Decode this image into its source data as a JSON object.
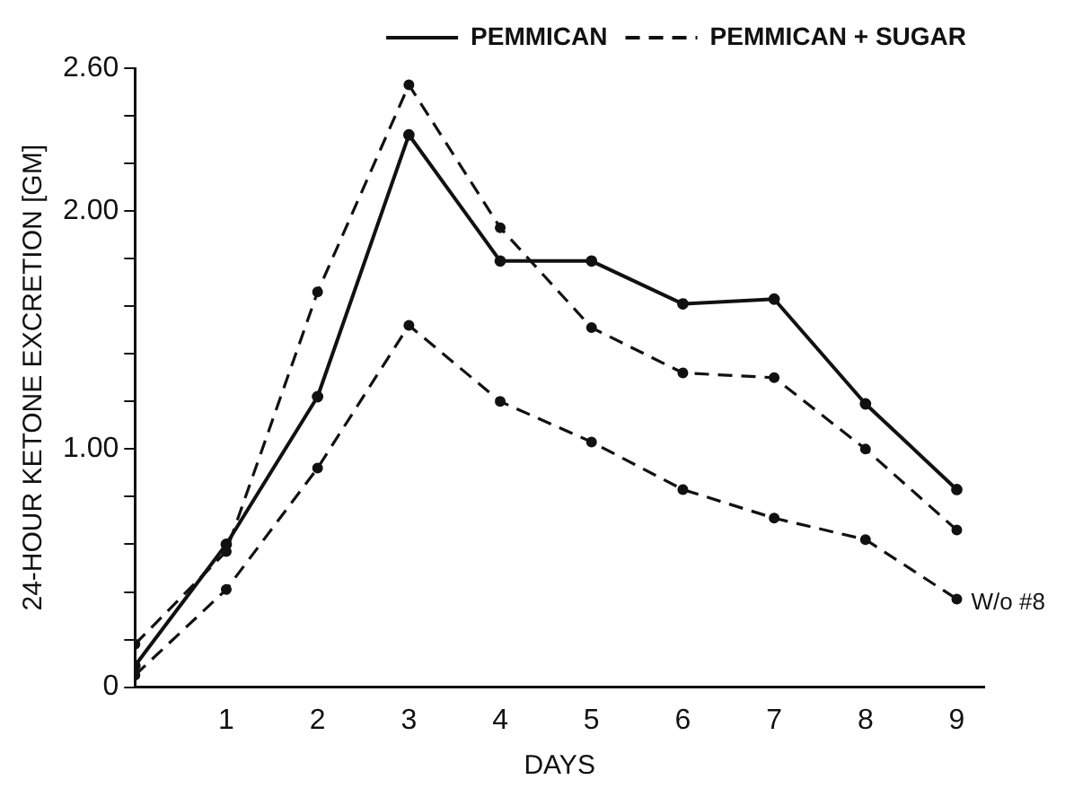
{
  "chart_data": {
    "type": "line",
    "xlabel": "DAYS",
    "ylabel": "24-HOUR KETONE EXCRETION [GM]",
    "x": [
      0,
      1,
      2,
      3,
      4,
      5,
      6,
      7,
      8,
      9
    ],
    "series": [
      {
        "name": "PEMMICAN",
        "color": "#111111",
        "line_style": "solid",
        "values": [
          0.09,
          0.6,
          1.22,
          2.32,
          1.79,
          1.79,
          1.61,
          1.63,
          1.19,
          0.83
        ]
      },
      {
        "name": "PEMMICAN + SUGAR",
        "color": "#111111",
        "line_style": "dashed",
        "values": [
          0.18,
          0.57,
          1.66,
          2.53,
          1.93,
          1.51,
          1.32,
          1.3,
          1.0,
          0.66
        ]
      },
      {
        "color": "#111111",
        "line_style": "dashed",
        "values": [
          0.05,
          0.41,
          0.92,
          1.52,
          1.2,
          1.03,
          0.83,
          0.71,
          0.62,
          0.37
        ]
      }
    ],
    "annotations": [
      {
        "text": "W/o #8",
        "x": 9,
        "y": 0.37
      }
    ],
    "xlim": [
      0,
      9.3
    ],
    "xticks": [
      1,
      2,
      3,
      4,
      5,
      6,
      7,
      8,
      9
    ],
    "ylim": [
      0,
      2.6
    ],
    "yticks": [
      {
        "value": 0,
        "label": "0"
      },
      {
        "value": 0.2,
        "label": null
      },
      {
        "value": 0.4,
        "label": null
      },
      {
        "value": 0.6,
        "label": null
      },
      {
        "value": 0.8,
        "label": null
      },
      {
        "value": 1,
        "label": "1.00"
      },
      {
        "value": 1.2,
        "label": null
      },
      {
        "value": 1.4,
        "label": null
      },
      {
        "value": 1.6,
        "label": null
      },
      {
        "value": 1.8,
        "label": null
      },
      {
        "value": 2,
        "label": "2.00"
      },
      {
        "value": 2.2,
        "label": null
      },
      {
        "value": 2.4,
        "label": null
      },
      {
        "value": 2.6,
        "label": "2.60"
      }
    ],
    "grid": false,
    "legend": "top right",
    "marker": "circle"
  }
}
